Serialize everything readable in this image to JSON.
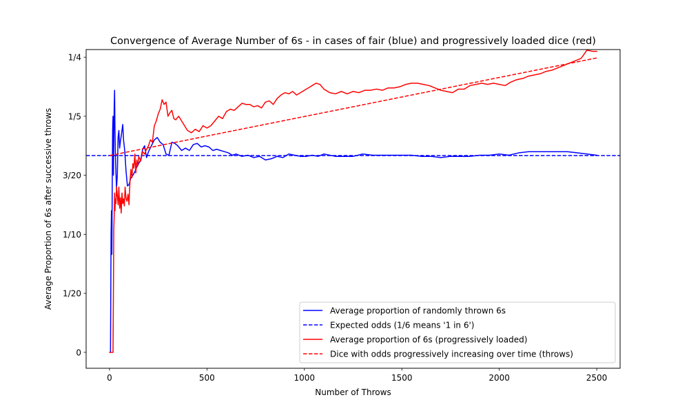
{
  "chart_data": {
    "type": "line",
    "title": "Convergence of Average Number of 6s - in cases of fair (blue) and progressively loaded dice (red)",
    "xlabel": "Number of Throws",
    "ylabel": "Average Proportion of 6s after successive throws",
    "xlim": [
      -120,
      2620
    ],
    "ylim": [
      -0.0135,
      0.2565
    ],
    "xticks": [
      0,
      500,
      1000,
      1500,
      2000,
      2500
    ],
    "xtick_labels": [
      "0",
      "500",
      "1000",
      "1500",
      "2000",
      "2500"
    ],
    "yticks": [
      0,
      0.05,
      0.1,
      0.15,
      0.2,
      0.25
    ],
    "ytick_labels": [
      "0",
      "1/20",
      "1/10",
      "3/20",
      "1/5",
      "1/4"
    ],
    "grid": false,
    "legend_position": "lower-right",
    "series": [
      {
        "name": "Average proportion of randomly thrown 6s",
        "color": "#0000ff",
        "style": "solid",
        "x": [
          1,
          5,
          8,
          10,
          12,
          14,
          16,
          18,
          20,
          22,
          24,
          26,
          28,
          30,
          33,
          36,
          40,
          44,
          48,
          52,
          56,
          60,
          64,
          68,
          72,
          78,
          85,
          92,
          100,
          110,
          120,
          130,
          140,
          150,
          160,
          170,
          180,
          190,
          200,
          215,
          230,
          245,
          260,
          275,
          290,
          305,
          320,
          335,
          350,
          370,
          390,
          410,
          430,
          450,
          470,
          490,
          510,
          530,
          550,
          570,
          590,
          610,
          630,
          650,
          680,
          710,
          740,
          770,
          800,
          830,
          860,
          890,
          920,
          950,
          980,
          1010,
          1040,
          1070,
          1100,
          1130,
          1160,
          1200,
          1250,
          1300,
          1350,
          1400,
          1450,
          1500,
          1550,
          1600,
          1650,
          1700,
          1750,
          1800,
          1850,
          1900,
          1950,
          2000,
          2050,
          2100,
          2150,
          2200,
          2250,
          2300,
          2350,
          2400,
          2450,
          2500
        ],
        "y": [
          0,
          0,
          0.1,
          0.12,
          0.083,
          0.143,
          0.188,
          0.2,
          0.15,
          0.182,
          0.208,
          0.222,
          0.19,
          0.17,
          0.152,
          0.139,
          0.15,
          0.182,
          0.188,
          0.173,
          0.179,
          0.183,
          0.188,
          0.193,
          0.18,
          0.171,
          0.153,
          0.141,
          0.142,
          0.148,
          0.15,
          0.153,
          0.157,
          0.16,
          0.163,
          0.172,
          0.175,
          0.165,
          0.17,
          0.175,
          0.18,
          0.182,
          0.178,
          0.176,
          0.168,
          0.167,
          0.178,
          0.177,
          0.175,
          0.171,
          0.173,
          0.171,
          0.176,
          0.177,
          0.174,
          0.175,
          0.174,
          0.171,
          0.172,
          0.171,
          0.17,
          0.169,
          0.167,
          0.168,
          0.166,
          0.167,
          0.165,
          0.166,
          0.163,
          0.164,
          0.166,
          0.165,
          0.168,
          0.167,
          0.166,
          0.166,
          0.167,
          0.166,
          0.168,
          0.167,
          0.166,
          0.166,
          0.166,
          0.168,
          0.167,
          0.167,
          0.167,
          0.167,
          0.167,
          0.166,
          0.166,
          0.165,
          0.166,
          0.166,
          0.166,
          0.167,
          0.167,
          0.168,
          0.167,
          0.169,
          0.17,
          0.17,
          0.17,
          0.17,
          0.17,
          0.169,
          0.168,
          0.167
        ]
      },
      {
        "name": "Expected odds (1/6 means '1 in 6')",
        "color": "#0000ff",
        "style": "dashed",
        "x": [
          -120,
          2620
        ],
        "y": [
          0.16667,
          0.16667
        ]
      },
      {
        "name": "Average proportion of 6s (progressively loaded)",
        "color": "#ff0000",
        "style": "solid",
        "x": [
          1,
          10,
          18,
          20,
          22,
          24,
          26,
          28,
          30,
          33,
          36,
          40,
          44,
          48,
          52,
          56,
          60,
          64,
          68,
          72,
          76,
          80,
          85,
          90,
          95,
          100,
          105,
          110,
          115,
          120,
          125,
          130,
          135,
          140,
          145,
          150,
          160,
          170,
          180,
          190,
          200,
          210,
          220,
          230,
          240,
          250,
          260,
          270,
          280,
          290,
          300,
          310,
          320,
          330,
          340,
          355,
          370,
          385,
          400,
          420,
          440,
          460,
          480,
          500,
          520,
          540,
          560,
          580,
          600,
          620,
          640,
          660,
          680,
          700,
          720,
          740,
          760,
          780,
          800,
          820,
          840,
          860,
          880,
          900,
          920,
          940,
          960,
          980,
          1000,
          1020,
          1040,
          1060,
          1080,
          1100,
          1130,
          1160,
          1190,
          1220,
          1250,
          1280,
          1310,
          1340,
          1370,
          1400,
          1430,
          1460,
          1490,
          1520,
          1550,
          1580,
          1610,
          1640,
          1670,
          1700,
          1730,
          1760,
          1790,
          1820,
          1850,
          1880,
          1910,
          1940,
          1970,
          2000,
          2030,
          2060,
          2090,
          2120,
          2150,
          2180,
          2210,
          2240,
          2270,
          2300,
          2330,
          2360,
          2390,
          2420,
          2450,
          2480,
          2500
        ],
        "y": [
          0,
          0,
          0,
          0.05,
          0.105,
          0.115,
          0.135,
          0.12,
          0.13,
          0.126,
          0.14,
          0.133,
          0.125,
          0.14,
          0.122,
          0.131,
          0.118,
          0.135,
          0.126,
          0.13,
          0.124,
          0.14,
          0.13,
          0.128,
          0.134,
          0.125,
          0.145,
          0.155,
          0.148,
          0.16,
          0.156,
          0.168,
          0.152,
          0.163,
          0.158,
          0.166,
          0.162,
          0.17,
          0.168,
          0.172,
          0.175,
          0.18,
          0.178,
          0.192,
          0.196,
          0.202,
          0.206,
          0.214,
          0.21,
          0.212,
          0.2,
          0.203,
          0.205,
          0.198,
          0.197,
          0.2,
          0.196,
          0.192,
          0.188,
          0.186,
          0.189,
          0.187,
          0.192,
          0.19,
          0.192,
          0.196,
          0.2,
          0.198,
          0.204,
          0.206,
          0.205,
          0.208,
          0.211,
          0.21,
          0.21,
          0.208,
          0.209,
          0.207,
          0.212,
          0.213,
          0.21,
          0.215,
          0.218,
          0.22,
          0.219,
          0.221,
          0.218,
          0.22,
          0.222,
          0.224,
          0.226,
          0.228,
          0.227,
          0.223,
          0.22,
          0.219,
          0.221,
          0.219,
          0.221,
          0.22,
          0.222,
          0.222,
          0.223,
          0.222,
          0.224,
          0.224,
          0.225,
          0.227,
          0.228,
          0.228,
          0.227,
          0.226,
          0.224,
          0.222,
          0.221,
          0.22,
          0.223,
          0.223,
          0.226,
          0.227,
          0.228,
          0.227,
          0.228,
          0.227,
          0.226,
          0.229,
          0.231,
          0.232,
          0.234,
          0.235,
          0.236,
          0.238,
          0.239,
          0.241,
          0.243,
          0.245,
          0.247,
          0.249,
          0.256,
          0.255,
          0.255
        ]
      },
      {
        "name": "Dice with odds progressively increasing over time (throws)",
        "color": "#ff0000",
        "style": "dashed",
        "x": [
          0,
          2500
        ],
        "y": [
          0.1667,
          0.2494
        ]
      }
    ]
  }
}
